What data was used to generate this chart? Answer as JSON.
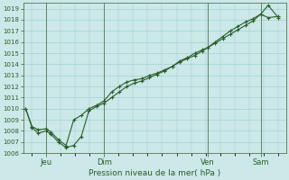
{
  "xlabel": "Pression niveau de la mer( hPa )",
  "ylim": [
    1006,
    1019.5
  ],
  "yticks": [
    1006,
    1007,
    1008,
    1009,
    1010,
    1011,
    1012,
    1013,
    1014,
    1015,
    1016,
    1017,
    1018,
    1019
  ],
  "xtick_positions": [
    0.08,
    0.31,
    0.72,
    0.93
  ],
  "xtick_labels": [
    "Jeu",
    "Dim",
    "Ven",
    "Sam"
  ],
  "background_color": "#cce8e8",
  "grid_color": "#99cccc",
  "line_color": "#2a5e2a",
  "line1_x": [
    0.0,
    0.025,
    0.05,
    0.08,
    0.1,
    0.13,
    0.16,
    0.19,
    0.22,
    0.25,
    0.28,
    0.31,
    0.34,
    0.37,
    0.4,
    0.43,
    0.46,
    0.49,
    0.52,
    0.55,
    0.58,
    0.61,
    0.64,
    0.67,
    0.7,
    0.72,
    0.75,
    0.78,
    0.81,
    0.84,
    0.87,
    0.9,
    0.93,
    0.96,
    1.0
  ],
  "line1_y": [
    1010.0,
    1008.3,
    1007.8,
    1008.0,
    1007.7,
    1007.0,
    1006.5,
    1006.7,
    1007.5,
    1009.8,
    1010.2,
    1010.5,
    1011.0,
    1011.5,
    1012.0,
    1012.3,
    1012.5,
    1012.8,
    1013.1,
    1013.4,
    1013.8,
    1014.2,
    1014.5,
    1014.8,
    1015.2,
    1015.5,
    1015.9,
    1016.3,
    1016.7,
    1017.1,
    1017.5,
    1017.9,
    1018.5,
    1018.2,
    1018.3
  ],
  "line2_x": [
    0.0,
    0.025,
    0.05,
    0.08,
    0.1,
    0.13,
    0.16,
    0.19,
    0.22,
    0.25,
    0.28,
    0.31,
    0.34,
    0.37,
    0.4,
    0.43,
    0.46,
    0.49,
    0.52,
    0.55,
    0.58,
    0.61,
    0.64,
    0.67,
    0.7,
    0.72,
    0.75,
    0.78,
    0.81,
    0.84,
    0.87,
    0.9,
    0.93,
    0.96,
    1.0
  ],
  "line2_y": [
    1010.0,
    1008.4,
    1008.1,
    1008.2,
    1007.9,
    1007.2,
    1006.7,
    1009.0,
    1009.4,
    1010.0,
    1010.3,
    1010.7,
    1011.5,
    1012.0,
    1012.4,
    1012.6,
    1012.7,
    1013.0,
    1013.2,
    1013.5,
    1013.8,
    1014.3,
    1014.6,
    1015.0,
    1015.3,
    1015.5,
    1016.0,
    1016.5,
    1017.0,
    1017.4,
    1017.8,
    1018.1,
    1018.5,
    1019.3,
    1018.2
  ]
}
